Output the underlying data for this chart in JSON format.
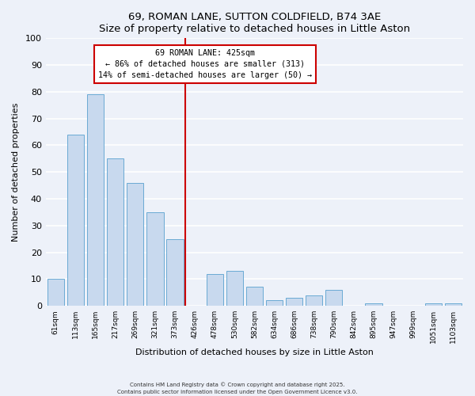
{
  "title": "69, ROMAN LANE, SUTTON COLDFIELD, B74 3AE",
  "subtitle": "Size of property relative to detached houses in Little Aston",
  "xlabel": "Distribution of detached houses by size in Little Aston",
  "ylabel": "Number of detached properties",
  "bar_labels": [
    "61sqm",
    "113sqm",
    "165sqm",
    "217sqm",
    "269sqm",
    "321sqm",
    "373sqm",
    "426sqm",
    "478sqm",
    "530sqm",
    "582sqm",
    "634sqm",
    "686sqm",
    "738sqm",
    "790sqm",
    "842sqm",
    "895sqm",
    "947sqm",
    "999sqm",
    "1051sqm",
    "1103sqm"
  ],
  "bar_values": [
    10,
    64,
    79,
    55,
    46,
    35,
    25,
    0,
    12,
    13,
    7,
    2,
    3,
    4,
    6,
    0,
    1,
    0,
    0,
    1,
    1
  ],
  "bar_color": "#c8d9ee",
  "bar_edge_color": "#6aaad4",
  "vline_color": "#cc0000",
  "annotation_title": "69 ROMAN LANE: 425sqm",
  "annotation_line1": "← 86% of detached houses are smaller (313)",
  "annotation_line2": "14% of semi-detached houses are larger (50) →",
  "annotation_box_facecolor": "#ffffff",
  "annotation_box_edgecolor": "#cc0000",
  "ylim": [
    0,
    100
  ],
  "yticks": [
    0,
    10,
    20,
    30,
    40,
    50,
    60,
    70,
    80,
    90,
    100
  ],
  "bg_color": "#edf1f9",
  "grid_color": "#ffffff",
  "footer_line1": "Contains HM Land Registry data © Crown copyright and database right 2025.",
  "footer_line2": "Contains public sector information licensed under the Open Government Licence v3.0."
}
